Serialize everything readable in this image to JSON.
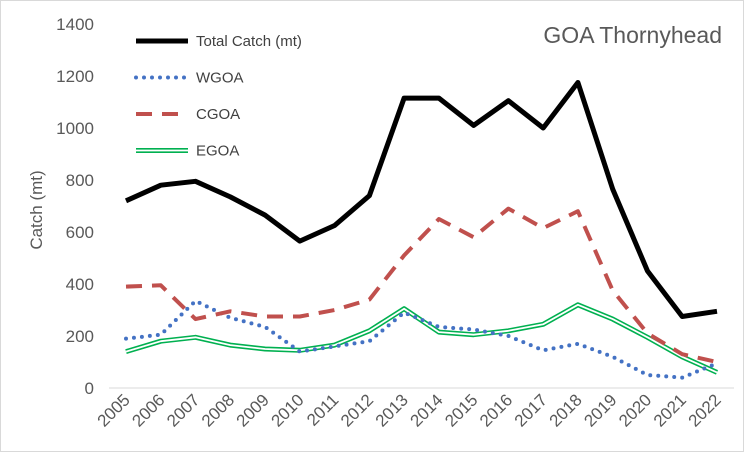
{
  "chart_data": {
    "type": "line",
    "title": "GOA Thornyhead",
    "xlabel": "",
    "ylabel": "Catch (mt)",
    "ylim": [
      0,
      1400
    ],
    "yticks": [
      0,
      200,
      400,
      600,
      800,
      1000,
      1200,
      1400
    ],
    "grid": false,
    "legend": "top-left",
    "categories": [
      "2005",
      "2006",
      "2007",
      "2008",
      "2009",
      "2010",
      "2011",
      "2012",
      "2013",
      "2014",
      "2015",
      "2016",
      "2017",
      "2018",
      "2019",
      "2020",
      "2021",
      "2022"
    ],
    "series": [
      {
        "name": "Total Catch (mt)",
        "color": "#000000",
        "style": "solid-thick",
        "values": [
          720,
          780,
          795,
          735,
          665,
          565,
          625,
          740,
          1115,
          1115,
          1010,
          1105,
          1000,
          1175,
          765,
          450,
          275,
          295
        ]
      },
      {
        "name": "WGOA",
        "color": "#4472c4",
        "style": "dotted",
        "values": [
          190,
          205,
          335,
          270,
          235,
          140,
          160,
          180,
          290,
          235,
          225,
          200,
          145,
          170,
          120,
          50,
          40,
          95
        ]
      },
      {
        "name": "CGOA",
        "color": "#c0504d",
        "style": "dashed",
        "values": [
          390,
          395,
          265,
          295,
          275,
          275,
          300,
          340,
          510,
          650,
          580,
          690,
          615,
          680,
          375,
          210,
          130,
          100
        ]
      },
      {
        "name": "EGOA",
        "color": "#00b050",
        "style": "double",
        "values": [
          140,
          180,
          195,
          165,
          150,
          145,
          165,
          220,
          305,
          215,
          205,
          220,
          245,
          320,
          265,
          195,
          120,
          60
        ]
      }
    ]
  }
}
